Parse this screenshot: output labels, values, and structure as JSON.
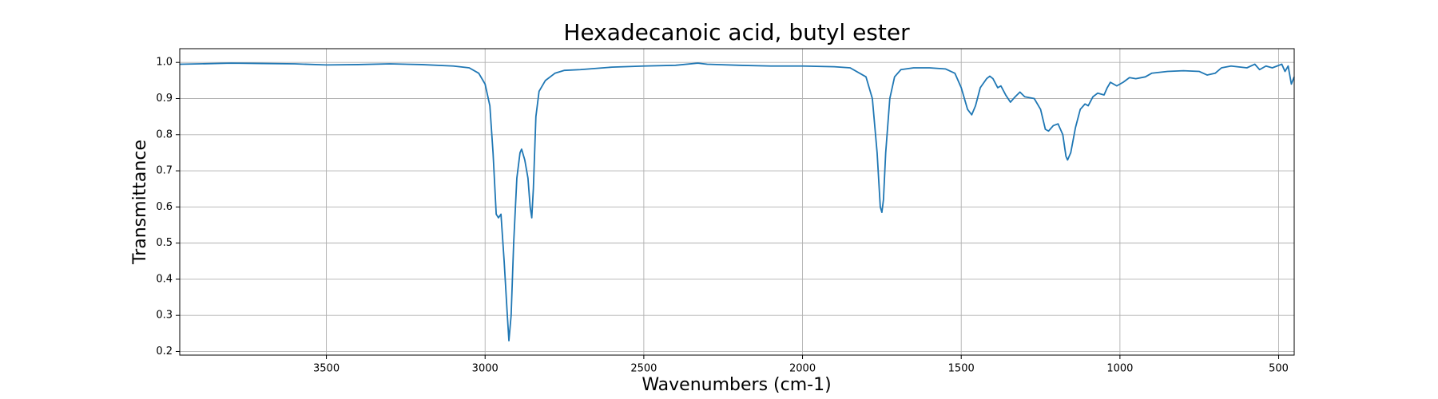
{
  "chart_data": {
    "type": "line",
    "title": "Hexadecanoic acid, butyl ester",
    "x_label": "Wavenumbers (cm-1)",
    "y_label": "Transmittance",
    "color": "#1f77b4",
    "grid": true,
    "xlim": [
      3962,
      451
    ],
    "ylim": [
      0.19,
      1.038
    ],
    "xticks": [
      3500,
      3000,
      2500,
      2000,
      1500,
      1000,
      500
    ],
    "yticks": [
      {
        "value": 0.2,
        "label": "0.2"
      },
      {
        "value": 0.3,
        "label": "0.3"
      },
      {
        "value": 0.4,
        "label": "0.4"
      },
      {
        "value": 0.5,
        "label": "0.5"
      },
      {
        "value": 0.6,
        "label": "0.6"
      },
      {
        "value": 0.7,
        "label": "0.7"
      },
      {
        "value": 0.8,
        "label": "0.8"
      },
      {
        "value": 0.9,
        "label": "0.9"
      },
      {
        "value": 1.0,
        "label": "1.0"
      }
    ],
    "x": [
      3962,
      3900,
      3800,
      3700,
      3600,
      3500,
      3400,
      3300,
      3200,
      3100,
      3050,
      3020,
      3000,
      2985,
      2975,
      2965,
      2958,
      2950,
      2940,
      2930,
      2925,
      2918,
      2910,
      2900,
      2890,
      2885,
      2875,
      2865,
      2858,
      2853,
      2848,
      2840,
      2830,
      2810,
      2780,
      2750,
      2700,
      2600,
      2500,
      2400,
      2330,
      2300,
      2200,
      2100,
      2000,
      1900,
      1850,
      1800,
      1780,
      1765,
      1755,
      1750,
      1745,
      1738,
      1725,
      1710,
      1690,
      1650,
      1600,
      1550,
      1520,
      1500,
      1480,
      1467,
      1455,
      1440,
      1420,
      1410,
      1400,
      1385,
      1375,
      1360,
      1345,
      1330,
      1315,
      1300,
      1270,
      1250,
      1235,
      1225,
      1210,
      1195,
      1180,
      1170,
      1165,
      1155,
      1140,
      1125,
      1110,
      1100,
      1085,
      1070,
      1050,
      1040,
      1030,
      1010,
      990,
      970,
      950,
      920,
      900,
      850,
      800,
      750,
      725,
      700,
      680,
      650,
      600,
      575,
      560,
      540,
      520,
      505,
      490,
      480,
      470,
      460,
      451
    ],
    "values": [
      0.995,
      0.996,
      0.998,
      0.997,
      0.996,
      0.993,
      0.994,
      0.996,
      0.994,
      0.99,
      0.985,
      0.97,
      0.94,
      0.88,
      0.75,
      0.58,
      0.57,
      0.58,
      0.45,
      0.3,
      0.23,
      0.3,
      0.5,
      0.68,
      0.75,
      0.76,
      0.73,
      0.68,
      0.6,
      0.57,
      0.65,
      0.85,
      0.92,
      0.95,
      0.97,
      0.978,
      0.98,
      0.987,
      0.99,
      0.992,
      0.998,
      0.995,
      0.992,
      0.99,
      0.99,
      0.988,
      0.985,
      0.96,
      0.9,
      0.75,
      0.6,
      0.585,
      0.62,
      0.75,
      0.9,
      0.96,
      0.98,
      0.985,
      0.985,
      0.982,
      0.97,
      0.93,
      0.87,
      0.855,
      0.88,
      0.93,
      0.955,
      0.962,
      0.955,
      0.93,
      0.935,
      0.91,
      0.89,
      0.905,
      0.918,
      0.905,
      0.9,
      0.87,
      0.815,
      0.81,
      0.825,
      0.83,
      0.8,
      0.74,
      0.73,
      0.75,
      0.82,
      0.87,
      0.885,
      0.88,
      0.905,
      0.915,
      0.91,
      0.93,
      0.945,
      0.935,
      0.945,
      0.958,
      0.955,
      0.96,
      0.97,
      0.975,
      0.977,
      0.975,
      0.965,
      0.97,
      0.985,
      0.99,
      0.985,
      0.995,
      0.98,
      0.99,
      0.985,
      0.99,
      0.995,
      0.975,
      0.99,
      0.94,
      0.96
    ]
  }
}
